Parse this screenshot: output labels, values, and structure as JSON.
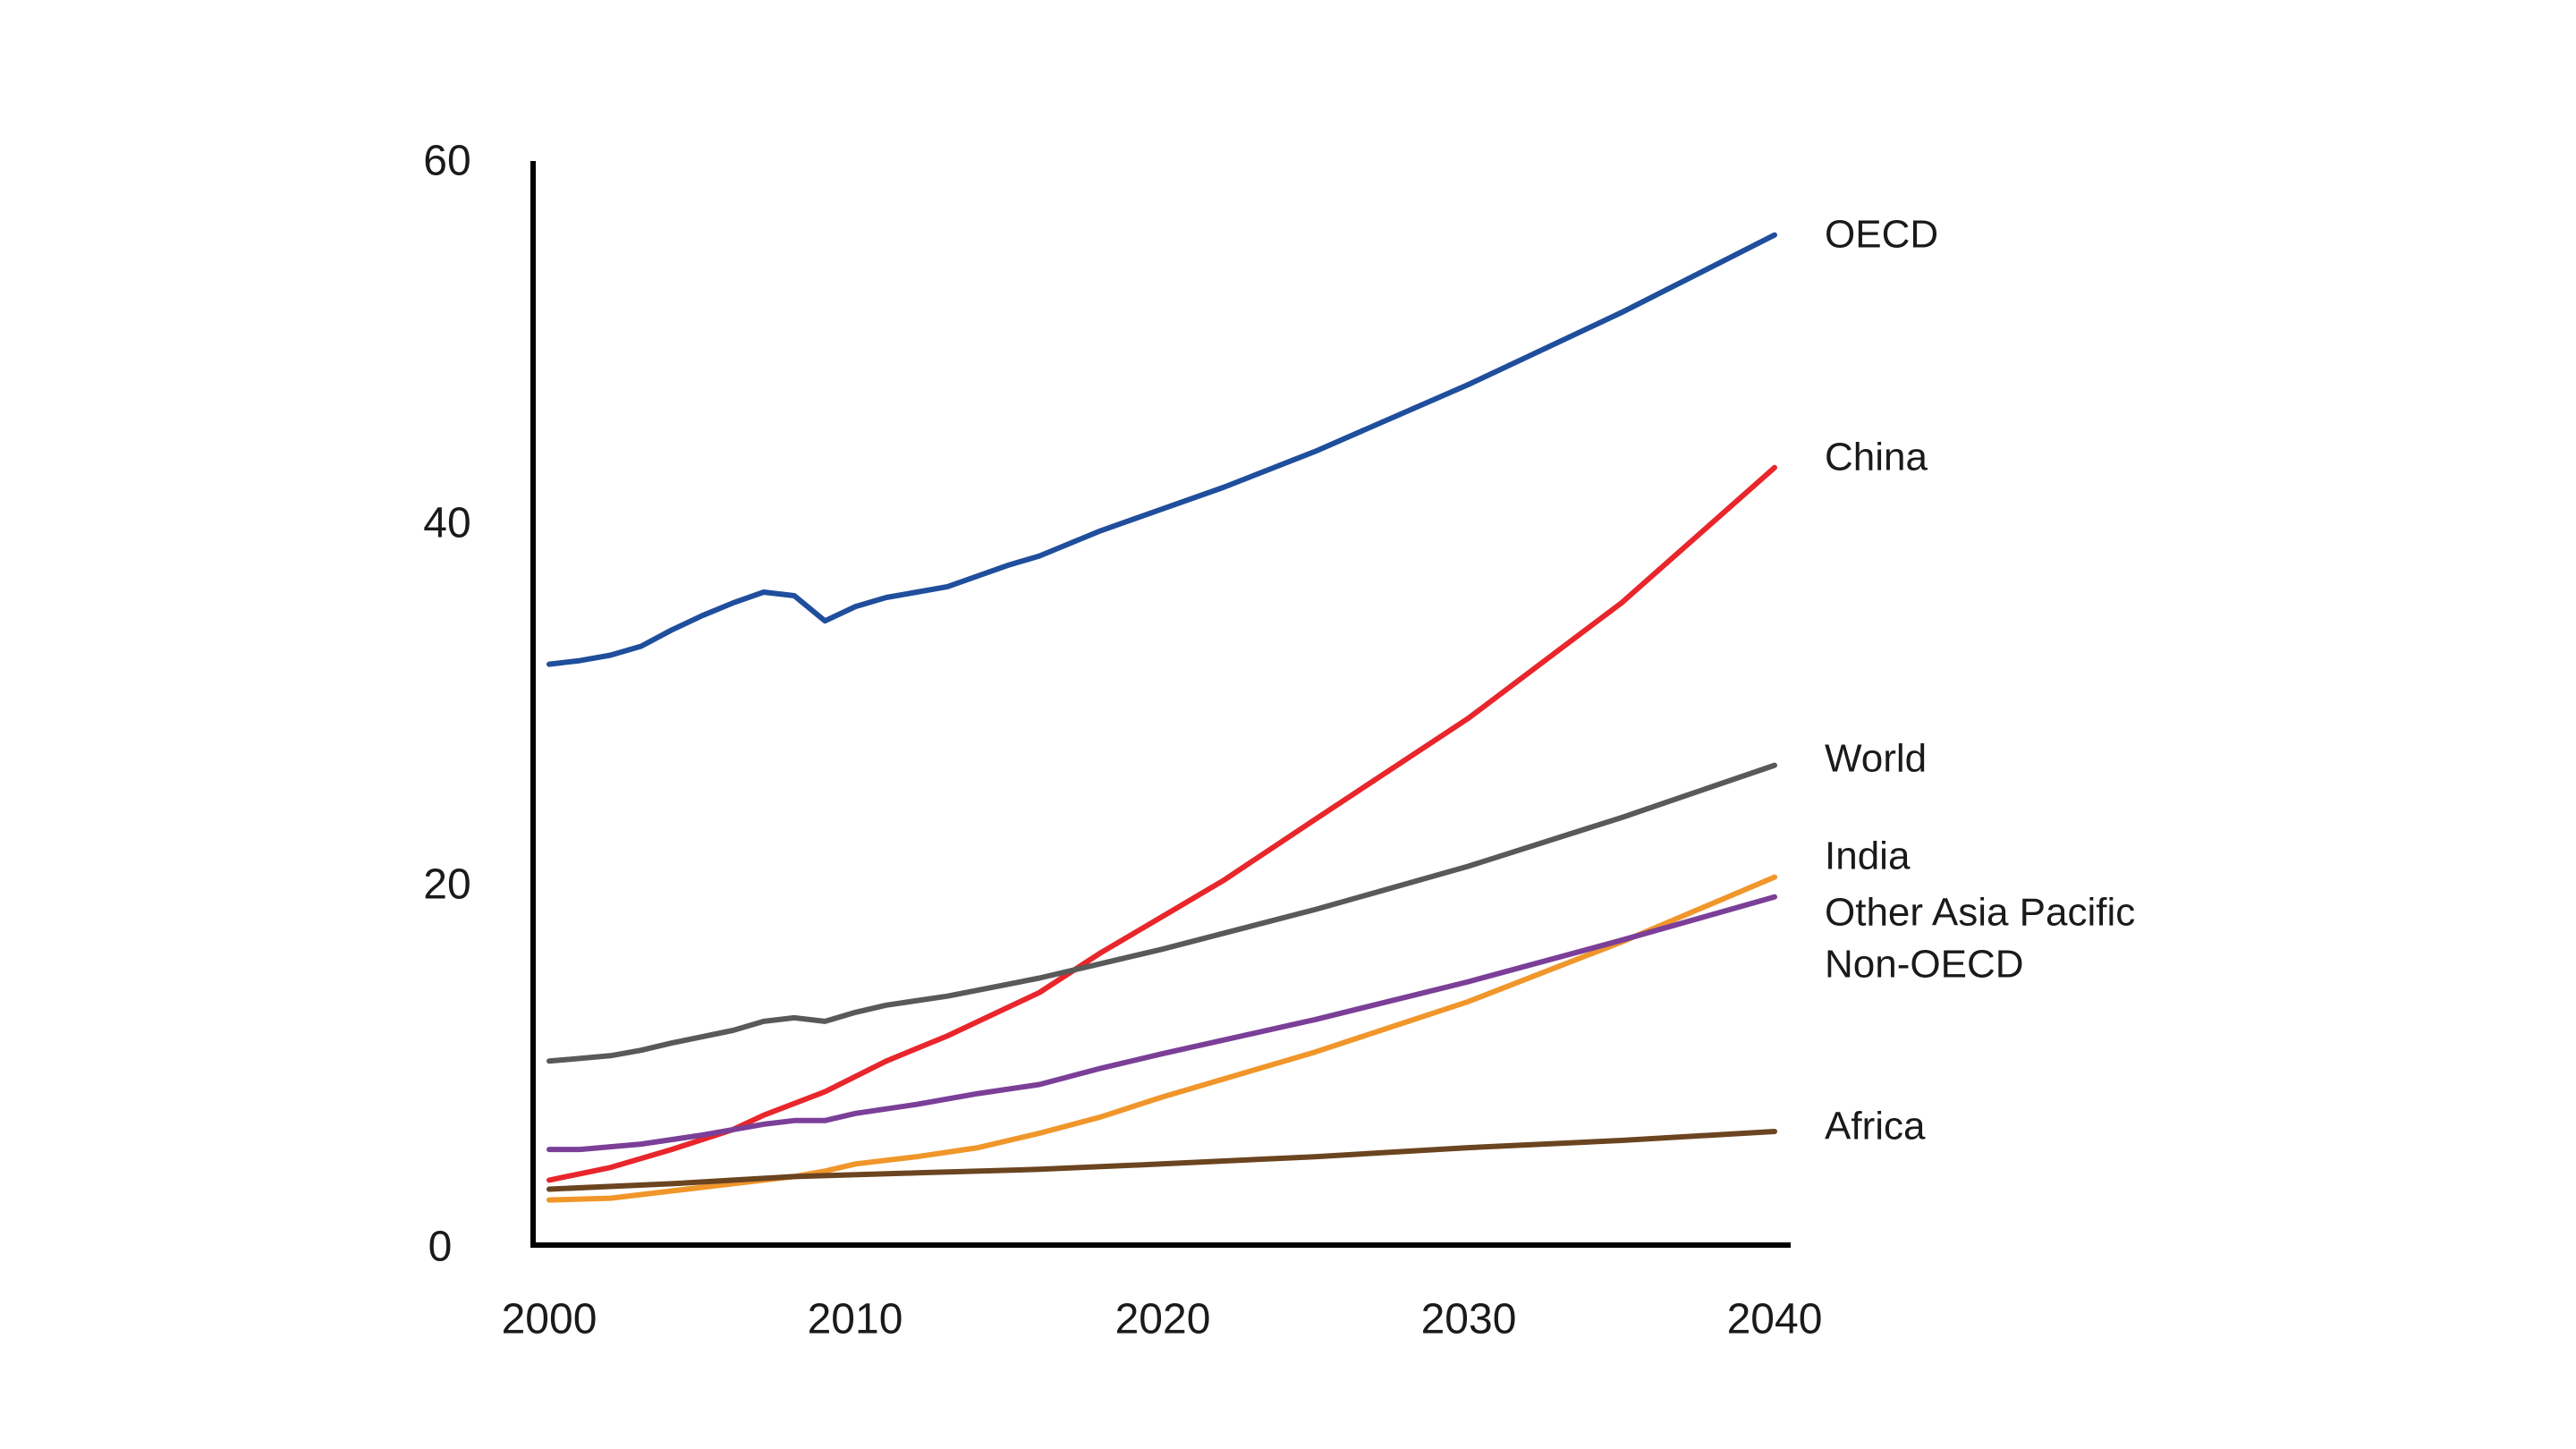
{
  "chart_data": {
    "type": "line",
    "title": "",
    "xlabel": "",
    "ylabel": "",
    "xlim": [
      2000,
      2040
    ],
    "ylim": [
      0,
      60
    ],
    "grid": false,
    "legend": "right-inline",
    "x_ticks": [
      "2000",
      "2010",
      "2020",
      "2030",
      "2040"
    ],
    "y_ticks": [
      "0",
      "20",
      "40",
      "60"
    ],
    "series": [
      {
        "name": "OECD",
        "color": "#1f4e9c",
        "points": [
          [
            2000,
            32.2
          ],
          [
            2001,
            32.4
          ],
          [
            2002,
            32.7
          ],
          [
            2003,
            33.2
          ],
          [
            2004,
            34.1
          ],
          [
            2005,
            34.9
          ],
          [
            2006,
            35.6
          ],
          [
            2007,
            36.2
          ],
          [
            2008,
            36.0
          ],
          [
            2009,
            34.6
          ],
          [
            2010,
            35.4
          ],
          [
            2011,
            35.9
          ],
          [
            2012,
            36.2
          ],
          [
            2013,
            36.5
          ],
          [
            2014,
            37.1
          ],
          [
            2015,
            37.7
          ],
          [
            2016,
            38.2
          ],
          [
            2018,
            39.6
          ],
          [
            2020,
            40.8
          ],
          [
            2022,
            42.0
          ],
          [
            2025,
            44.0
          ],
          [
            2030,
            47.7
          ],
          [
            2035,
            51.7
          ],
          [
            2040,
            56.0
          ]
        ]
      },
      {
        "name": "China",
        "color": "#e8262b",
        "points": [
          [
            2000,
            3.6
          ],
          [
            2002,
            4.3
          ],
          [
            2004,
            5.3
          ],
          [
            2006,
            6.4
          ],
          [
            2007,
            7.2
          ],
          [
            2009,
            8.5
          ],
          [
            2011,
            10.2
          ],
          [
            2013,
            11.6
          ],
          [
            2016,
            14.0
          ],
          [
            2018,
            16.2
          ],
          [
            2020,
            18.2
          ],
          [
            2022,
            20.2
          ],
          [
            2025,
            23.6
          ],
          [
            2030,
            29.2
          ],
          [
            2035,
            35.6
          ],
          [
            2040,
            43.1
          ]
        ]
      },
      {
        "name": "World",
        "color": "#595959",
        "points": [
          [
            2000,
            10.2
          ],
          [
            2002,
            10.5
          ],
          [
            2003,
            10.8
          ],
          [
            2004,
            11.2
          ],
          [
            2006,
            11.9
          ],
          [
            2007,
            12.4
          ],
          [
            2008,
            12.6
          ],
          [
            2009,
            12.4
          ],
          [
            2010,
            12.9
          ],
          [
            2011,
            13.3
          ],
          [
            2013,
            13.8
          ],
          [
            2016,
            14.8
          ],
          [
            2018,
            15.6
          ],
          [
            2020,
            16.4
          ],
          [
            2025,
            18.6
          ],
          [
            2030,
            21.0
          ],
          [
            2035,
            23.7
          ],
          [
            2040,
            26.6
          ]
        ]
      },
      {
        "name": "India",
        "color": "#f0962a",
        "points": [
          [
            2000,
            2.5
          ],
          [
            2002,
            2.6
          ],
          [
            2004,
            3.0
          ],
          [
            2006,
            3.4
          ],
          [
            2008,
            3.8
          ],
          [
            2009,
            4.1
          ],
          [
            2010,
            4.5
          ],
          [
            2012,
            4.9
          ],
          [
            2014,
            5.4
          ],
          [
            2016,
            6.2
          ],
          [
            2018,
            7.1
          ],
          [
            2020,
            8.2
          ],
          [
            2025,
            10.7
          ],
          [
            2030,
            13.5
          ],
          [
            2035,
            16.8
          ],
          [
            2040,
            20.4
          ]
        ]
      },
      {
        "name": "Other Asia Pacific Non-OECD",
        "color": "#7b3f98",
        "points": [
          [
            2000,
            5.3
          ],
          [
            2001,
            5.3
          ],
          [
            2003,
            5.6
          ],
          [
            2005,
            6.1
          ],
          [
            2007,
            6.7
          ],
          [
            2008,
            6.9
          ],
          [
            2009,
            6.9
          ],
          [
            2010,
            7.3
          ],
          [
            2012,
            7.8
          ],
          [
            2014,
            8.4
          ],
          [
            2016,
            8.9
          ],
          [
            2018,
            9.8
          ],
          [
            2020,
            10.6
          ],
          [
            2025,
            12.5
          ],
          [
            2030,
            14.6
          ],
          [
            2035,
            16.9
          ],
          [
            2040,
            19.3
          ]
        ]
      },
      {
        "name": "Africa",
        "color": "#6b4420",
        "points": [
          [
            2000,
            3.1
          ],
          [
            2004,
            3.4
          ],
          [
            2008,
            3.8
          ],
          [
            2012,
            4.0
          ],
          [
            2016,
            4.2
          ],
          [
            2020,
            4.5
          ],
          [
            2025,
            4.9
          ],
          [
            2030,
            5.4
          ],
          [
            2035,
            5.8
          ],
          [
            2040,
            6.3
          ]
        ]
      }
    ],
    "labels": {
      "oecd": "OECD",
      "china": "China",
      "world": "World",
      "india": "India",
      "other_asia_line1": "Other Asia Pacific",
      "other_asia_line2": "Non-OECD",
      "africa": "Africa"
    }
  }
}
